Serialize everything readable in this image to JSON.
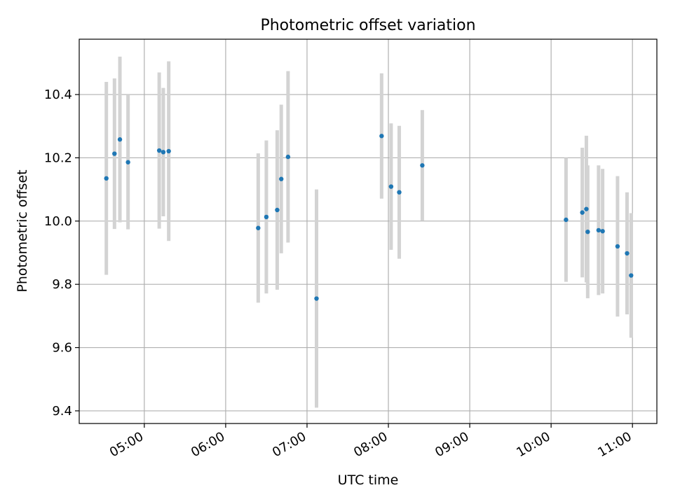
{
  "chart_data": {
    "type": "scatter",
    "title": "Photometric offset variation",
    "xlabel": "UTC time",
    "ylabel": "Photometric offset",
    "x_ticks": [
      "05:00",
      "06:00",
      "07:00",
      "08:00",
      "09:00",
      "10:00",
      "11:00"
    ],
    "y_ticks": [
      "9.4",
      "9.6",
      "9.8",
      "10.0",
      "10.2",
      "10.4"
    ],
    "xlim": [
      "04:12",
      "11:18"
    ],
    "ylim": [
      9.36,
      10.575
    ],
    "grid": true,
    "colors": {
      "point": "#1f77b4",
      "errorbar": "#d3d3d3",
      "grid": "#b0b0b0"
    },
    "points": [
      {
        "t": "04:32",
        "y": 10.135,
        "err": 0.305
      },
      {
        "t": "04:38",
        "y": 10.213,
        "err": 0.238
      },
      {
        "t": "04:42",
        "y": 10.258,
        "err": 0.262
      },
      {
        "t": "04:48",
        "y": 10.186,
        "err": 0.212
      },
      {
        "t": "05:11",
        "y": 10.223,
        "err": 0.247
      },
      {
        "t": "05:14",
        "y": 10.218,
        "err": 0.203
      },
      {
        "t": "05:18",
        "y": 10.221,
        "err": 0.284
      },
      {
        "t": "06:24",
        "y": 9.978,
        "err": 0.236
      },
      {
        "t": "06:30",
        "y": 10.013,
        "err": 0.242
      },
      {
        "t": "06:38",
        "y": 10.035,
        "err": 0.252
      },
      {
        "t": "06:41",
        "y": 10.133,
        "err": 0.235
      },
      {
        "t": "06:46",
        "y": 10.203,
        "err": 0.271
      },
      {
        "t": "07:07",
        "y": 9.755,
        "err": 0.345
      },
      {
        "t": "07:55",
        "y": 10.269,
        "err": 0.198
      },
      {
        "t": "08:02",
        "y": 10.109,
        "err": 0.2
      },
      {
        "t": "08:08",
        "y": 10.091,
        "err": 0.21
      },
      {
        "t": "08:25",
        "y": 10.176,
        "err": 0.175
      },
      {
        "t": "10:11",
        "y": 10.004,
        "err": 0.196
      },
      {
        "t": "10:23",
        "y": 10.027,
        "err": 0.205
      },
      {
        "t": "10:26",
        "y": 10.038,
        "err": 0.232
      },
      {
        "t": "10:27",
        "y": 9.966,
        "err": 0.21
      },
      {
        "t": "10:35",
        "y": 9.971,
        "err": 0.205
      },
      {
        "t": "10:38",
        "y": 9.968,
        "err": 0.197
      },
      {
        "t": "10:49",
        "y": 9.92,
        "err": 0.222
      },
      {
        "t": "10:56",
        "y": 9.898,
        "err": 0.193
      },
      {
        "t": "10:59",
        "y": 9.828,
        "err": 0.197
      }
    ]
  }
}
